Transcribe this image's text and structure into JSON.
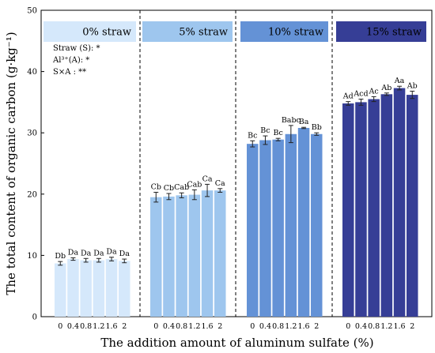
{
  "chart_data": {
    "type": "bar",
    "xlabel": "The addition amount of aluminum sulfate (%)",
    "ylabel": "The total content of organic carbon (g·kg⁻¹)",
    "ylim": [
      0,
      50
    ],
    "yticks": [
      "0",
      "10",
      "20",
      "30",
      "40",
      "50"
    ],
    "categories": [
      "0",
      "0.4",
      "0.8",
      "1.2",
      "1.6",
      "2"
    ],
    "grid": false,
    "legend_position": "top",
    "stats": [
      "Straw (S): *",
      "Al³⁺(A): *",
      "S×A :  **"
    ],
    "series": [
      {
        "name": "0% straw",
        "color": "#d5e8fb",
        "values": [
          8.7,
          9.4,
          9.2,
          9.2,
          9.4,
          9.1
        ],
        "errors": [
          0.3,
          0.2,
          0.3,
          0.3,
          0.3,
          0.3
        ],
        "labels": [
          "Db",
          "Da",
          "Da",
          "Da",
          "Da",
          "Da"
        ]
      },
      {
        "name": "5% straw",
        "color": "#9ec6ee",
        "values": [
          19.5,
          19.6,
          19.8,
          19.9,
          20.6,
          20.6
        ],
        "errors": [
          0.8,
          0.5,
          0.4,
          0.8,
          1.0,
          0.3
        ],
        "labels": [
          "Cb",
          "Cb",
          "Cab",
          "Cab",
          "Ca",
          "Ca"
        ]
      },
      {
        "name": "10% straw",
        "color": "#6492d6",
        "values": [
          28.2,
          28.8,
          28.9,
          29.8,
          30.8,
          29.8
        ],
        "errors": [
          0.5,
          0.7,
          0.2,
          1.4,
          0.1,
          0.2
        ],
        "labels": [
          "Bc",
          "Bc",
          "Bc",
          "Babc",
          "Ba",
          "Bb"
        ]
      },
      {
        "name": "15% straw",
        "color": "#363e96",
        "values": [
          34.8,
          35.0,
          35.5,
          36.3,
          37.3,
          36.2
        ],
        "errors": [
          0.3,
          0.5,
          0.4,
          0.2,
          0.3,
          0.6
        ],
        "labels": [
          "Ad",
          "Acd",
          "Ac",
          "Ab",
          "Aa",
          "Ab"
        ]
      }
    ]
  }
}
